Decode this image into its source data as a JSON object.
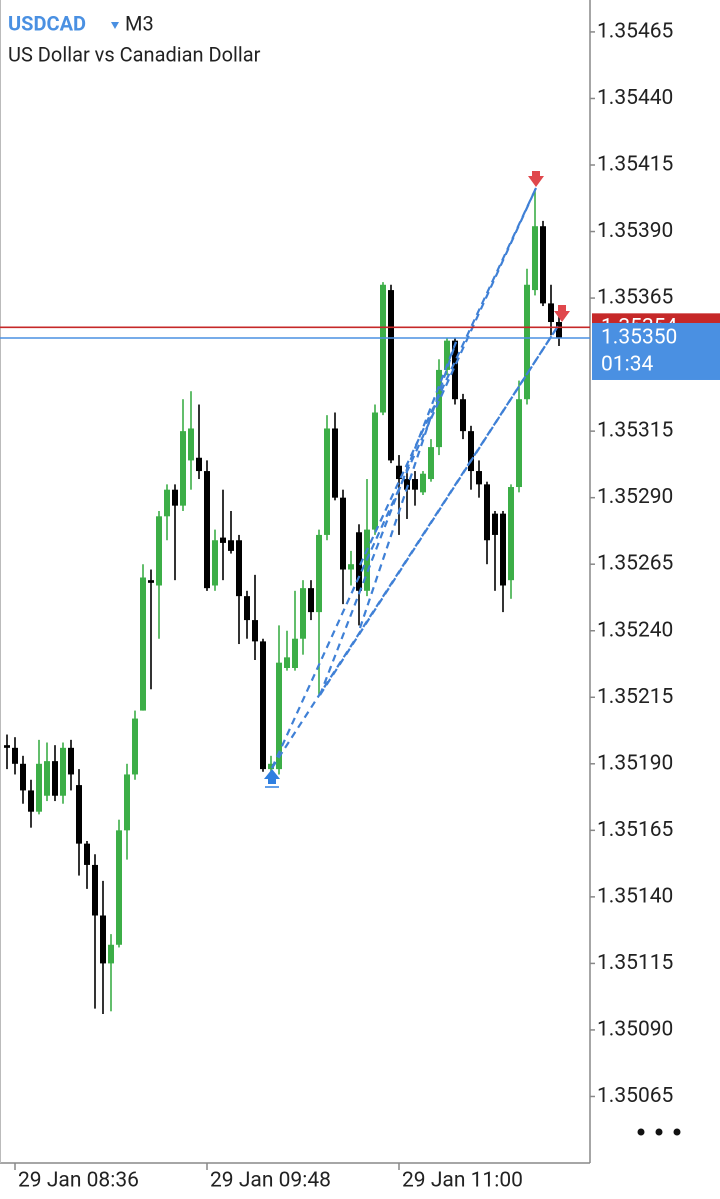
{
  "chart_data": {
    "type": "candlestick",
    "symbol": "USDCAD",
    "timeframe": "M3",
    "subtitle": "US Dollar vs Canadian Dollar",
    "categories": [
      null,
      "29 Jan 08:36",
      null,
      null,
      null,
      null,
      null,
      null,
      null,
      null,
      null,
      null,
      null,
      null,
      null,
      null,
      null,
      null,
      null,
      null,
      null,
      null,
      null,
      null,
      null,
      "29 Jan 09:48",
      null,
      null,
      null,
      null,
      null,
      null,
      null,
      null,
      null,
      null,
      null,
      null,
      null,
      null,
      null,
      null,
      null,
      null,
      null,
      null,
      null,
      null,
      null,
      "29 Jan 11:00",
      null,
      null,
      null,
      null,
      null,
      null,
      null,
      null,
      null,
      null,
      null,
      null,
      null,
      null,
      null,
      null,
      null,
      null,
      null,
      null
    ],
    "open": [
      1.35197,
      1.35196,
      1.3519,
      1.3518,
      1.35172,
      1.35178,
      1.35191,
      1.35178,
      1.35196,
      1.35182,
      1.3516,
      1.35152,
      1.35133,
      1.35115,
      1.35122,
      1.35165,
      1.35186,
      1.3521,
      1.35259,
      1.35257,
      1.35283,
      1.35293,
      1.35287,
      1.35304,
      1.35305,
      1.353,
      1.35257,
      1.35275,
      1.35274,
      1.35274,
      1.35253,
      1.35244,
      1.35236,
      1.35188,
      1.35188,
      1.35226,
      1.35226,
      1.35237,
      1.35256,
      1.35247,
      1.35276,
      1.35316,
      1.3529,
      1.35263,
      1.35277,
      1.35255,
      1.35278,
      1.35322,
      1.35368,
      1.35302,
      1.35297,
      1.35297,
      1.35292,
      1.35297,
      1.35309,
      1.35338,
      1.35349,
      1.35327,
      1.35315,
      1.353,
      1.35295,
      1.35284,
      1.35284,
      1.35259,
      1.35294,
      1.35327,
      1.35368,
      1.35392,
      1.35363,
      1.35356
    ],
    "high": [
      1.35201,
      1.352,
      1.35193,
      1.35184,
      1.35199,
      1.35198,
      1.35197,
      1.35198,
      1.35199,
      1.35188,
      1.35161,
      1.35156,
      1.35146,
      1.35126,
      1.35169,
      1.3519,
      1.3521,
      1.35265,
      1.35263,
      1.35285,
      1.35295,
      1.35295,
      1.35327,
      1.3533,
      1.35325,
      1.35304,
      1.35278,
      1.35293,
      1.35285,
      1.35276,
      1.35255,
      1.35261,
      1.35237,
      1.35193,
      1.35242,
      1.3524,
      1.35255,
      1.35259,
      1.35259,
      1.35278,
      1.35321,
      1.35322,
      1.35293,
      1.3527,
      1.3528,
      1.35297,
      1.35325,
      1.35371,
      1.3537,
      1.35306,
      1.35302,
      1.353,
      1.353,
      1.35312,
      1.35342,
      1.3535,
      1.3535,
      1.35329,
      1.35317,
      1.35304,
      1.35296,
      1.35285,
      1.35285,
      1.35295,
      1.35334,
      1.35376,
      1.35406,
      1.35394,
      1.3537,
      1.3536
    ],
    "low": [
      1.35188,
      1.35186,
      1.35175,
      1.35166,
      1.35171,
      1.35176,
      1.35176,
      1.35175,
      1.3518,
      1.35148,
      1.35143,
      1.35098,
      1.35096,
      1.35097,
      1.35121,
      1.35154,
      1.35184,
      1.3521,
      1.35218,
      1.35237,
      1.35274,
      1.35259,
      1.35285,
      1.35293,
      1.35297,
      1.35255,
      1.35255,
      1.35259,
      1.35269,
      1.35235,
      1.35237,
      1.35229,
      1.35187,
      1.35184,
      1.35186,
      1.35225,
      1.35225,
      1.35231,
      1.35244,
      1.35216,
      1.35274,
      1.35289,
      1.3525,
      1.35257,
      1.35242,
      1.35253,
      1.35276,
      1.35321,
      1.35303,
      1.35276,
      1.35282,
      1.35287,
      1.35291,
      1.35296,
      1.35306,
      1.35336,
      1.35325,
      1.35312,
      1.35293,
      1.3529,
      1.35265,
      1.35255,
      1.35247,
      1.35252,
      1.35292,
      1.35325,
      1.35366,
      1.35362,
      1.35351,
      1.35347
    ],
    "close": [
      1.35196,
      1.3519,
      1.3518,
      1.35172,
      1.3519,
      1.35191,
      1.35178,
      1.35196,
      1.35186,
      1.3516,
      1.35152,
      1.35133,
      1.35115,
      1.35122,
      1.35165,
      1.35186,
      1.35207,
      1.3526,
      1.35258,
      1.35283,
      1.35293,
      1.35287,
      1.35315,
      1.35316,
      1.353,
      1.35256,
      1.35274,
      1.35273,
      1.3527,
      1.35253,
      1.35244,
      1.35236,
      1.35188,
      1.3519,
      1.35228,
      1.3523,
      1.35237,
      1.35256,
      1.35247,
      1.35276,
      1.35316,
      1.3529,
      1.35263,
      1.35265,
      1.35255,
      1.35278,
      1.35322,
      1.3537,
      1.35304,
      1.35297,
      1.35293,
      1.35293,
      1.35299,
      1.35309,
      1.35338,
      1.35349,
      1.35327,
      1.35315,
      1.353,
      1.35295,
      1.35274,
      1.35276,
      1.35257,
      1.35294,
      1.35327,
      1.3537,
      1.35392,
      1.35363,
      1.35356,
      1.3535
    ],
    "up_color": "#3cae47",
    "down_color": "#000000",
    "ylim": [
      1.3504,
      1.35477
    ],
    "yticks": [
      1.35465,
      {
        "value": 1.3544,
        "label": "1.35440"
      },
      1.35415,
      {
        "value": 1.3539,
        "label": "1.35390"
      },
      1.35365,
      1.35315,
      {
        "value": 1.3529,
        "label": "1.35290"
      },
      1.35265,
      {
        "value": 1.3524,
        "label": "1.35240"
      },
      1.35215,
      {
        "value": 1.3519,
        "label": "1.35190"
      },
      1.35165,
      {
        "value": 1.3514,
        "label": "1.35140"
      },
      1.35115,
      {
        "value": 1.3509,
        "label": "1.35090"
      },
      1.35065
    ],
    "ask": {
      "value": 1.35354,
      "label": "1.35354",
      "color": "#c62828"
    },
    "bid": {
      "value": 1.3535,
      "label": "1.35350",
      "color": "#4a90e2"
    },
    "countdown": "01:34"
  }
}
